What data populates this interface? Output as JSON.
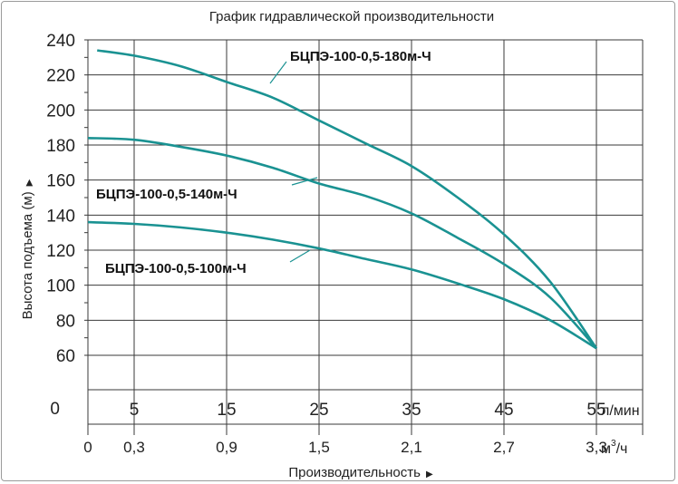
{
  "chart_data": {
    "type": "line",
    "title": "График гидравлической производительности",
    "ylabel": "Высота подъема (м)",
    "xlabel": "Производительность",
    "y_ticks": [
      "240",
      "220",
      "200",
      "180",
      "160",
      "140",
      "120",
      "100",
      "80",
      "60"
    ],
    "y_zero_label": "0",
    "ylim": [
      60,
      240
    ],
    "x_ticks_lmin": [
      "5",
      "15",
      "25",
      "35",
      "45",
      "55"
    ],
    "x_unit_lmin": "л/мин",
    "x_ticks_m3h": [
      "0",
      "0,3",
      "0,9",
      "1,5",
      "2,1",
      "2,7",
      "3,3"
    ],
    "x_unit_m3h": "м³/ч",
    "x_unit_m3h_base": "м",
    "x_unit_m3h_sup": "3",
    "x_unit_m3h_tail": "/ч",
    "xlim_lmin": [
      0,
      60
    ],
    "grid": true,
    "axis_color": "#3a3a3a",
    "series_color": "#1a9292",
    "series": [
      {
        "name": "БЦПЭ-100-0,5-180м-Ч",
        "x": [
          1,
          5,
          10,
          15,
          20,
          25,
          30,
          35,
          40,
          45,
          50,
          55
        ],
        "y": [
          234,
          231,
          225,
          216,
          207,
          194,
          181,
          168,
          150,
          129,
          102,
          64
        ]
      },
      {
        "name": "БЦПЭ-100-0,5-140м-Ч",
        "x": [
          0,
          5,
          10,
          15,
          20,
          25,
          30,
          35,
          40,
          45,
          50,
          55
        ],
        "y": [
          184,
          183,
          179,
          174,
          167,
          158,
          151,
          141,
          127,
          112,
          93,
          64
        ]
      },
      {
        "name": "БЦПЭ-100-0,5-100м-Ч",
        "x": [
          0,
          5,
          10,
          15,
          20,
          25,
          30,
          35,
          40,
          45,
          50,
          55
        ],
        "y": [
          136,
          135,
          133,
          130,
          126,
          121,
          115,
          109,
          101,
          92,
          80,
          64
        ]
      }
    ]
  }
}
